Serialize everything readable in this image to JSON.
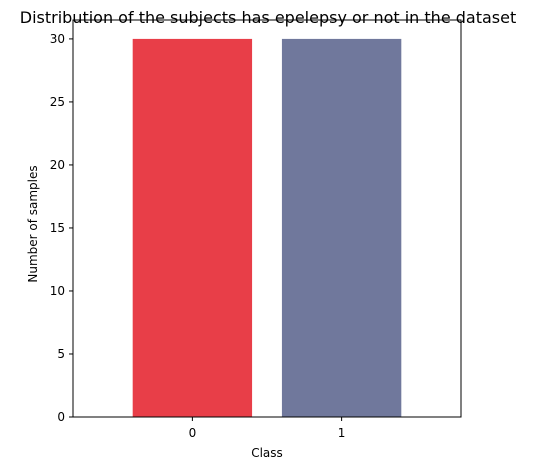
{
  "chart_data": {
    "type": "bar",
    "title": "Distribution of the subjects has epelepsy or not in the dataset",
    "xlabel": "Class",
    "ylabel": "Number of samples",
    "categories": [
      "0",
      "1"
    ],
    "values": [
      30,
      30
    ],
    "colors": [
      "#e83e48",
      "#70789c"
    ],
    "ylim": [
      0,
      31.5
    ],
    "yticks": [
      0,
      5,
      10,
      15,
      20,
      25,
      30
    ],
    "grid": false,
    "legend": "none"
  }
}
